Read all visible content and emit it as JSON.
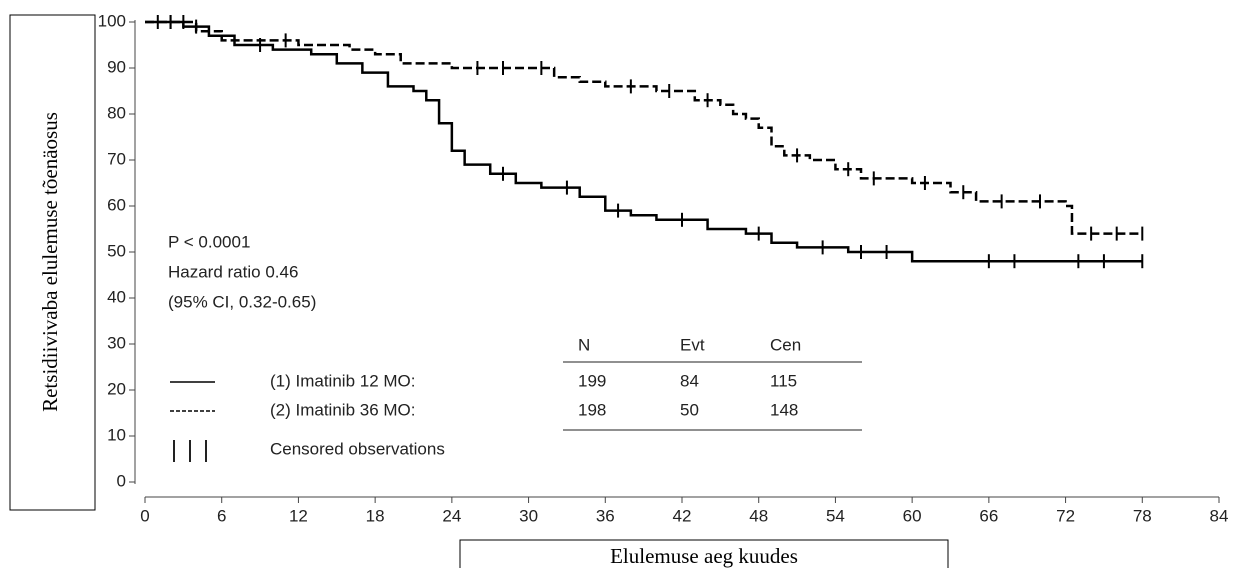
{
  "chart_data": {
    "type": "step",
    "y_label": "Retsidiivivaba elulemuse tõenäosus",
    "x_label": "Elulemuse aeg kuudes",
    "annotations": [
      "P < 0.0001",
      "Hazard ratio 0.46",
      "(95% CI, 0.32-0.65)"
    ],
    "xlim": [
      0,
      84
    ],
    "ylim": [
      0,
      100
    ],
    "xticks": [
      0,
      6,
      12,
      18,
      24,
      30,
      36,
      42,
      48,
      54,
      60,
      66,
      72,
      78,
      84
    ],
    "yticks": [
      0,
      10,
      20,
      30,
      40,
      50,
      60,
      70,
      80,
      90,
      100
    ],
    "series": [
      {
        "name": "(1) Imatinib 12 MO:",
        "color": "#000000",
        "line_style": "solid",
        "x": [
          0,
          3,
          5,
          7,
          10,
          13,
          15,
          17,
          19,
          21,
          22,
          23,
          24,
          25,
          27,
          29,
          31,
          34,
          36,
          38,
          40,
          44,
          47,
          49,
          51,
          55,
          60,
          78
        ],
        "values": [
          100,
          99,
          97,
          95,
          94,
          93,
          91,
          89,
          86,
          85,
          83,
          78,
          72,
          69,
          67,
          65,
          64,
          62,
          59,
          58,
          57,
          55,
          54,
          52,
          51,
          50,
          48,
          48
        ],
        "censored_x": [
          2,
          4,
          9,
          28,
          33,
          37,
          42,
          48,
          53,
          56,
          58,
          66,
          68,
          73,
          75,
          78
        ],
        "censored_values": [
          100,
          99,
          95,
          67,
          64,
          59,
          57,
          54,
          51,
          50,
          50,
          48,
          48,
          48,
          48,
          48
        ]
      },
      {
        "name": "(2) Imatinib 36 MO:",
        "color": "#000000",
        "line_style": "dashed",
        "x": [
          0,
          4,
          6,
          12,
          16,
          18,
          20,
          24,
          32,
          34,
          36,
          40,
          43,
          45,
          46,
          47,
          48,
          49,
          50,
          52,
          54,
          56,
          60,
          63,
          65,
          72,
          72.5,
          78
        ],
        "values": [
          100,
          98,
          96,
          95,
          94,
          93,
          91,
          90,
          88,
          87,
          86,
          85,
          83,
          82,
          80,
          79,
          77,
          73,
          71,
          70,
          68,
          66,
          65,
          63,
          61,
          60,
          54,
          54
        ],
        "censored_x": [
          1,
          2,
          3,
          11,
          26,
          28,
          31,
          38,
          41,
          44,
          51,
          55,
          57,
          61,
          64,
          67,
          70,
          74,
          76,
          78
        ],
        "censored_values": [
          100,
          100,
          100,
          96,
          90,
          90,
          90,
          86,
          85,
          83,
          71,
          68,
          66,
          65,
          63,
          61,
          61,
          54,
          54,
          54
        ]
      }
    ],
    "censor_label": "Censored observations",
    "table": {
      "columns": [
        "N",
        "Evt",
        "Cen"
      ],
      "rows": [
        [
          199,
          84,
          115
        ],
        [
          198,
          50,
          148
        ]
      ]
    }
  }
}
